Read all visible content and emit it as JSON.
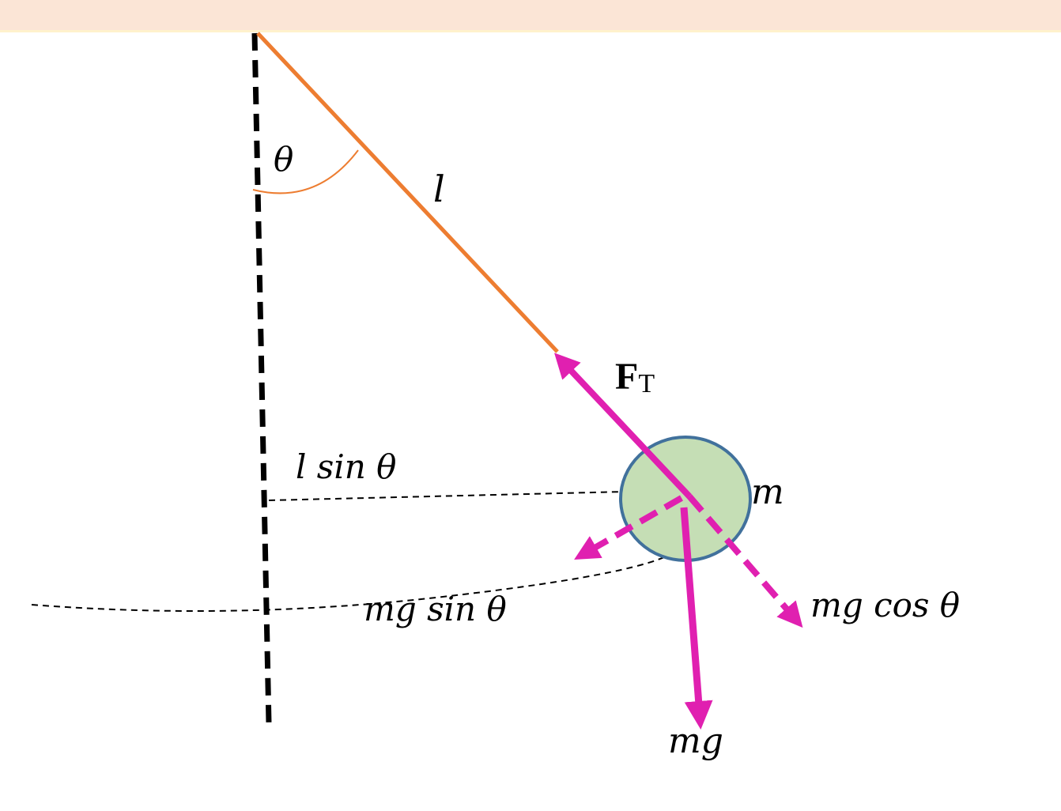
{
  "colors": {
    "header_band": "#fbe5d6",
    "string": "#ed7d31",
    "force": "#e020b0",
    "bob_fill": "#c5deb5",
    "bob_stroke": "#41719c",
    "reference": "#000000"
  },
  "labels": {
    "theta": "θ",
    "length": "l",
    "tension_main": "F",
    "tension_sub": "T",
    "l_sin_theta": "l sin θ",
    "mass": "m",
    "mg_sin_theta": "mg sin θ",
    "mg_cos_theta": "mg cos θ",
    "mg": "mg"
  }
}
